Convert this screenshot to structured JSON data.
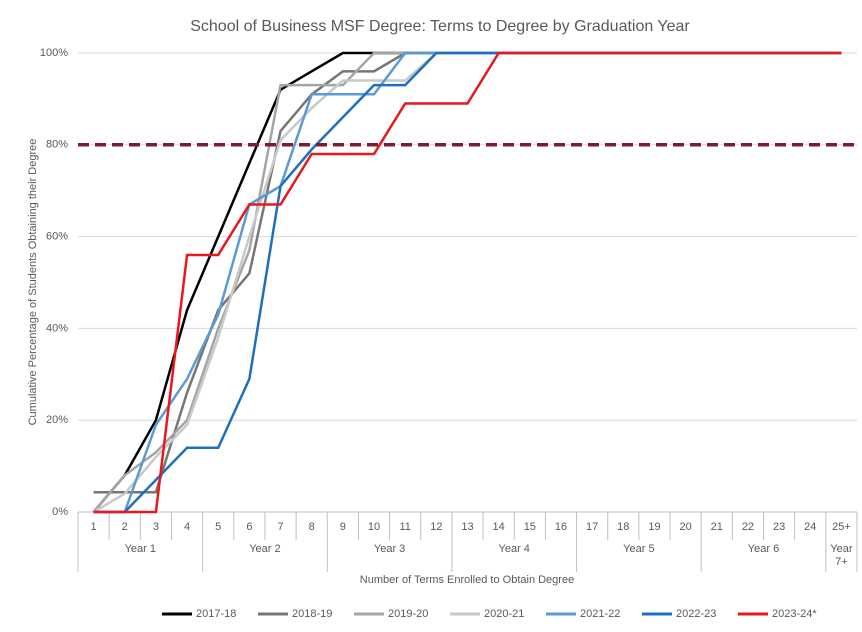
{
  "chart_data": {
    "type": "line",
    "title": "School of Business MSF Degree: Terms to Degree by Graduation Year",
    "x_label": "Number of Terms Enrolled to Obtain Degree",
    "y_label": "Cumulative Percentage of Students Obtaining their Degree",
    "categories": [
      "1",
      "2",
      "3",
      "4",
      "5",
      "6",
      "7",
      "8",
      "9",
      "10",
      "11",
      "12",
      "13",
      "14",
      "15",
      "16",
      "17",
      "18",
      "19",
      "20",
      "21",
      "22",
      "23",
      "24",
      "25+"
    ],
    "groups": [
      {
        "label": "Year 1",
        "span": 4
      },
      {
        "label": "Year 2",
        "span": 4
      },
      {
        "label": "Year 3",
        "span": 4
      },
      {
        "label": "Year 4",
        "span": 4
      },
      {
        "label": "Year 5",
        "span": 4
      },
      {
        "label": "Year 6",
        "span": 4
      },
      {
        "label": "Year 7+",
        "span": 1
      }
    ],
    "ylim": [
      0,
      100
    ],
    "yticks": [
      {
        "value": 0,
        "label": "0%"
      },
      {
        "value": 20,
        "label": "20%"
      },
      {
        "value": 40,
        "label": "40%"
      },
      {
        "value": 60,
        "label": "60%"
      },
      {
        "value": 80,
        "label": "80%"
      },
      {
        "value": 100,
        "label": "100%"
      }
    ],
    "grid": true,
    "legend": "bottom",
    "reference_line": {
      "value": 80,
      "color": "#7b1c34"
    },
    "series": [
      {
        "name": "2017-18",
        "color": "#000000",
        "values": [
          0,
          8,
          20,
          44,
          60,
          76,
          92,
          96,
          100,
          100,
          100,
          100,
          100,
          100,
          100,
          100,
          100,
          100,
          100,
          100,
          100,
          100,
          100,
          100,
          100
        ]
      },
      {
        "name": "2018-19",
        "color": "#767676",
        "values": [
          4.3,
          4.3,
          4.3,
          26,
          44,
          52,
          83,
          91,
          96,
          96,
          100,
          100,
          100,
          100,
          100,
          100,
          100,
          100,
          100,
          100,
          100,
          100,
          100,
          100,
          100
        ]
      },
      {
        "name": "2019-20",
        "color": "#a5a5a5",
        "values": [
          0,
          8,
          13,
          20,
          40,
          57,
          93,
          93,
          93,
          100,
          100,
          100,
          100,
          100,
          100,
          100,
          100,
          100,
          100,
          100,
          100,
          100,
          100,
          100,
          100
        ]
      },
      {
        "name": "2020-21",
        "color": "#c9c9c9",
        "values": [
          0,
          4,
          12,
          19,
          38,
          60,
          81,
          88,
          94,
          94,
          94,
          100,
          100,
          100,
          100,
          100,
          100,
          100,
          100,
          100,
          100,
          100,
          100,
          100,
          100
        ]
      },
      {
        "name": "2021-22",
        "color": "#5b9bd5",
        "values": [
          0,
          0,
          19,
          29,
          43,
          67,
          71,
          91,
          91,
          91,
          100,
          100,
          100,
          100,
          100,
          100,
          100,
          100,
          100,
          100,
          100,
          100,
          100,
          100,
          100
        ]
      },
      {
        "name": "2022-23",
        "color": "#1f6fbf",
        "values": [
          0,
          0,
          7,
          14,
          14,
          29,
          71,
          79,
          86,
          93,
          93,
          100,
          100,
          100,
          100,
          100,
          100,
          100,
          100,
          100,
          100,
          100,
          100,
          100,
          100
        ]
      },
      {
        "name": "2023-24*",
        "color": "#e8191c",
        "values": [
          0,
          0,
          0,
          56,
          56,
          67,
          67,
          78,
          78,
          78,
          89,
          89,
          89,
          100,
          100,
          100,
          100,
          100,
          100,
          100,
          100,
          100,
          100,
          100,
          100
        ]
      }
    ]
  }
}
